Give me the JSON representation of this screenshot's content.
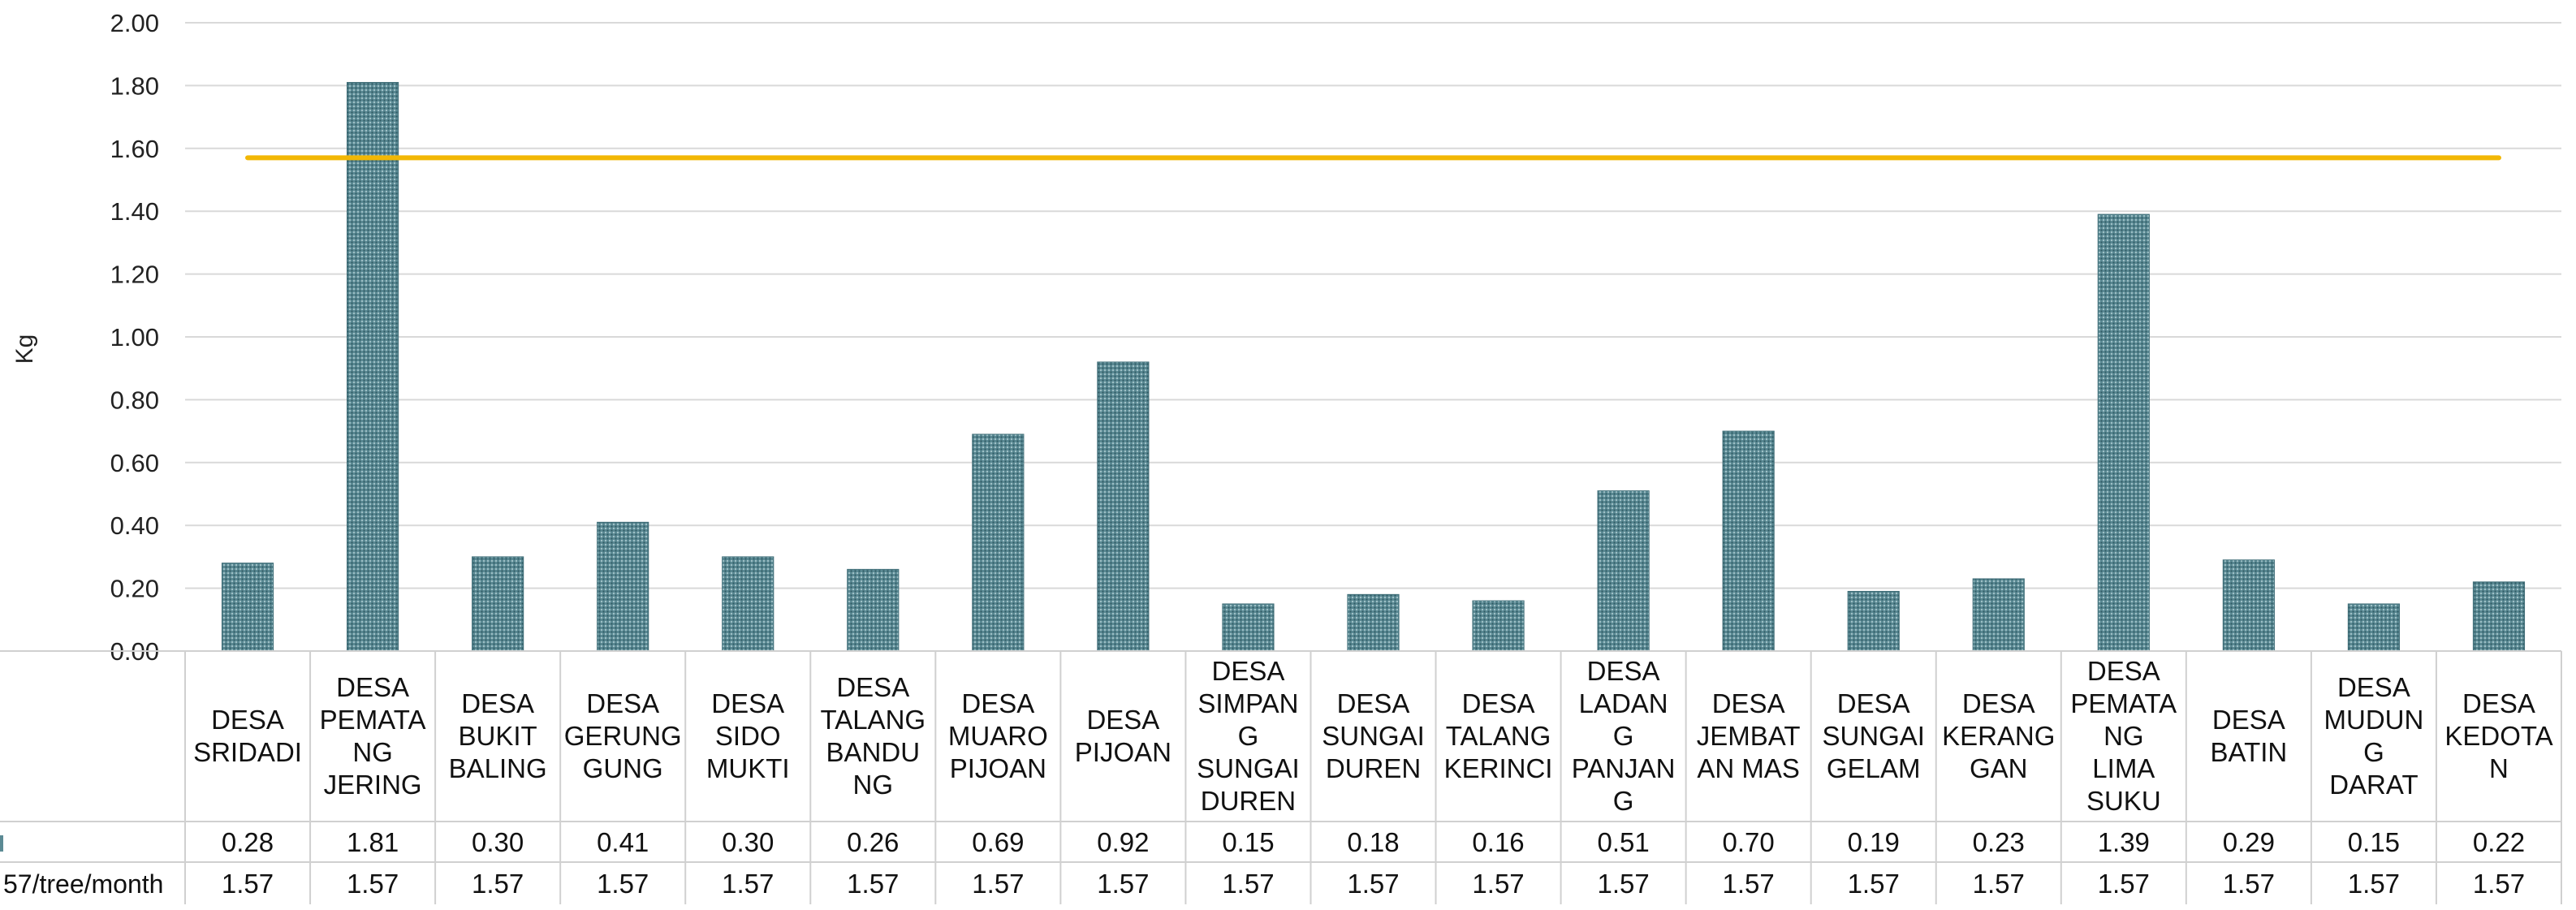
{
  "chart_data": {
    "type": "bar",
    "ylabel": "Kg",
    "ylim": [
      0,
      2.0
    ],
    "yticks": [
      "0.00",
      "0.20",
      "0.40",
      "0.60",
      "0.80",
      "1.00",
      "1.20",
      "1.40",
      "1.60",
      "1.80",
      "2.00"
    ],
    "grid": true,
    "categories": [
      "DESA SRIDADI",
      "DESA PEMATANG JERING",
      "DESA BUKIT BALING",
      "DESA GERUNG GUNG",
      "DESA SIDO MUKTI",
      "DESA TALANG BANDUNG",
      "DESA MUARO PIJOAN",
      "DESA PIJOAN",
      "DESA SIMPANG SUNGAI DUREN",
      "DESA SUNGAI DUREN",
      "DESA TALANG KERINCI",
      "DESA LADANG PANJANG",
      "DESA JEMBATAN MAS",
      "DESA SUNGAI GELAM",
      "DESA KERANGGAN",
      "DESA PEMATANG LIMA SUKU",
      "DESA BATIN",
      "DESA MUDUNG DARAT",
      "DESA KEDOTAN"
    ],
    "category_label_lines": [
      [
        "DESA",
        "SRIDADI"
      ],
      [
        "DESA",
        "PEMATA",
        "NG",
        "JERING"
      ],
      [
        "DESA",
        "BUKIT",
        "BALING"
      ],
      [
        "DESA",
        "GERUNG",
        "GUNG"
      ],
      [
        "DESA",
        "SIDO",
        "MUKTI"
      ],
      [
        "DESA",
        "TALANG",
        "BANDU",
        "NG"
      ],
      [
        "DESA",
        "MUARO",
        "PIJOAN"
      ],
      [
        "DESA",
        "PIJOAN"
      ],
      [
        "DESA",
        "SIMPAN",
        "G",
        "SUNGAI",
        "DUREN"
      ],
      [
        "DESA",
        "SUNGAI",
        "DUREN"
      ],
      [
        "DESA",
        "TALANG",
        "KERINCI"
      ],
      [
        "DESA",
        "LADAN",
        "G",
        "PANJAN",
        "G"
      ],
      [
        "DESA",
        "JEMBAT",
        "AN MAS"
      ],
      [
        "DESA",
        "SUNGAI",
        "GELAM"
      ],
      [
        "DESA",
        "KERANG",
        "GAN"
      ],
      [
        "DESA",
        "PEMATA",
        "NG",
        "LIMA",
        "SUKU"
      ],
      [
        "DESA",
        "BATIN"
      ],
      [
        "DESA",
        "MUDUN",
        "G",
        "DARAT"
      ],
      [
        "DESA",
        "KEDOTA",
        "N"
      ]
    ],
    "series": [
      {
        "table_label": "",
        "type": "bar",
        "color": "#5b8a94",
        "values": [
          0.28,
          1.81,
          0.3,
          0.41,
          0.3,
          0.26,
          0.69,
          0.92,
          0.15,
          0.18,
          0.16,
          0.51,
          0.7,
          0.19,
          0.23,
          1.39,
          0.29,
          0.15,
          0.22
        ],
        "labels": [
          "0.28",
          "1.81",
          "0.30",
          "0.41",
          "0.30",
          "0.26",
          "0.69",
          "0.92",
          "0.15",
          "0.18",
          "0.16",
          "0.51",
          "0.70",
          "0.19",
          "0.23",
          "1.39",
          "0.29",
          "0.15",
          "0.22"
        ]
      },
      {
        "table_label": "57/tree/month",
        "type": "line",
        "color": "#f2b705",
        "values": [
          1.57,
          1.57,
          1.57,
          1.57,
          1.57,
          1.57,
          1.57,
          1.57,
          1.57,
          1.57,
          1.57,
          1.57,
          1.57,
          1.57,
          1.57,
          1.57,
          1.57,
          1.57,
          1.57
        ],
        "labels": [
          "1.57",
          "1.57",
          "1.57",
          "1.57",
          "1.57",
          "1.57",
          "1.57",
          "1.57",
          "1.57",
          "1.57",
          "1.57",
          "1.57",
          "1.57",
          "1.57",
          "1.57",
          "1.57",
          "1.57",
          "1.57",
          "1.57"
        ]
      }
    ]
  }
}
